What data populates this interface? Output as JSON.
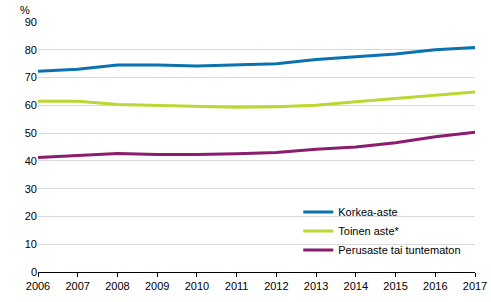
{
  "chart_data": {
    "type": "line",
    "y_label": "%",
    "x": [
      2006,
      2007,
      2008,
      2009,
      2010,
      2011,
      2012,
      2013,
      2014,
      2015,
      2016,
      2017
    ],
    "series": [
      {
        "name": "Korkea-aste",
        "color": "#0a72b0",
        "values": [
          72.3,
          73.0,
          74.5,
          74.5,
          74.2,
          74.5,
          75.0,
          76.5,
          77.5,
          78.5,
          80.0,
          80.8
        ]
      },
      {
        "name": "Toinen aste*",
        "color": "#bcd634",
        "values": [
          61.5,
          61.5,
          60.3,
          60.0,
          59.8,
          59.3,
          59.5,
          60.0,
          61.3,
          62.5,
          63.6,
          64.8
        ]
      },
      {
        "name": "Perusaste tai tuntematon",
        "color": "#8c1c6e",
        "values": [
          41.2,
          42.0,
          42.7,
          42.3,
          42.3,
          42.6,
          43.0,
          44.2,
          45.0,
          46.5,
          48.7,
          50.3
        ]
      }
    ],
    "xlim": [
      2006,
      2017
    ],
    "xticks": [
      2006,
      2007,
      2008,
      2009,
      2010,
      2011,
      2012,
      2013,
      2014,
      2015,
      2016,
      2017
    ],
    "ylim": [
      0,
      90
    ],
    "yticks": [
      0,
      10,
      20,
      30,
      40,
      50,
      60,
      70,
      80,
      90
    ],
    "grid": true,
    "legend": "lower right"
  }
}
